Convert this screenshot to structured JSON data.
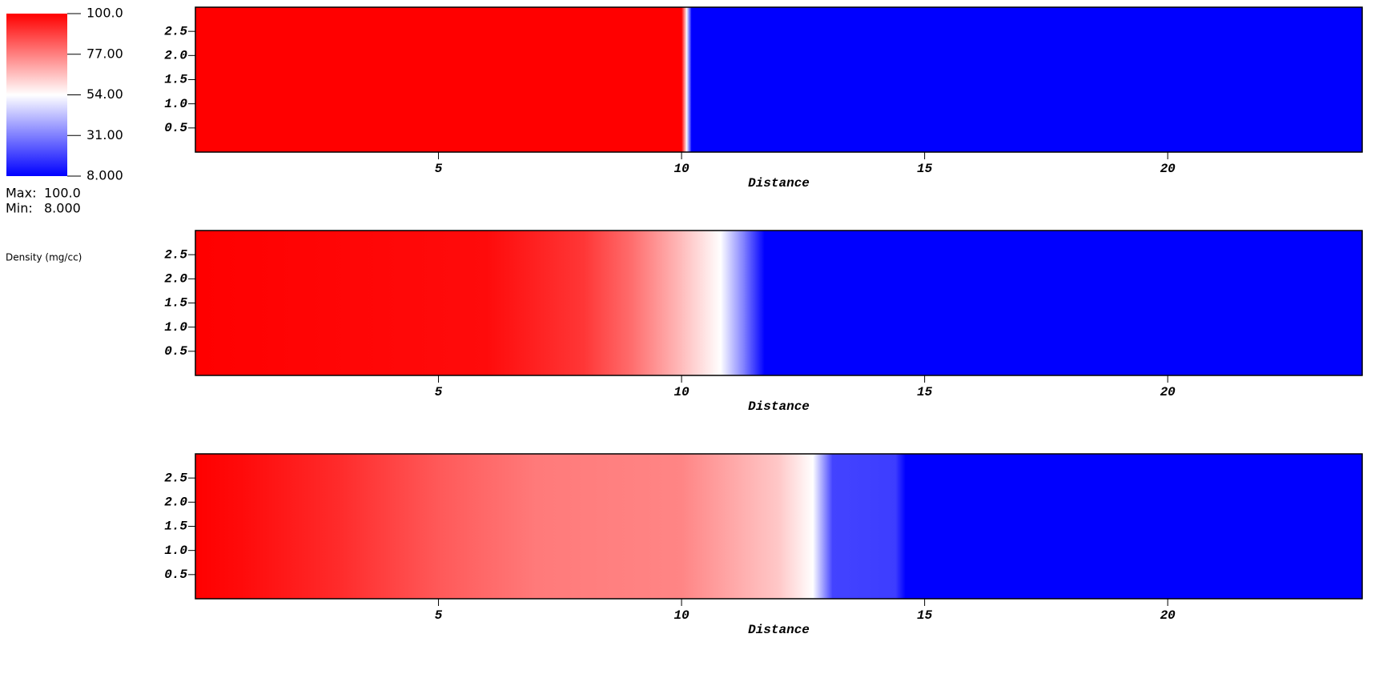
{
  "colorbar": {
    "ticks": [
      {
        "value": 100,
        "label": "100.0"
      },
      {
        "value": 77,
        "label": "77.00"
      },
      {
        "value": 54,
        "label": "54.00"
      },
      {
        "value": 31,
        "label": "31.00"
      },
      {
        "value": 8,
        "label": "8.000"
      }
    ],
    "colors": [
      "#0000ff",
      "#ffffff",
      "#ff0000"
    ],
    "max_label": "Max:",
    "max": {
      "value": 100,
      "label": "100.0"
    },
    "min_label": "Min:",
    "min": {
      "value": 8,
      "label": "8.000"
    },
    "title": "Density (mg/cc)"
  },
  "chart_data": [
    {
      "type": "heatmap",
      "x_label": "Distance",
      "xlim": [
        0,
        24
      ],
      "xticks": [
        5,
        10,
        15,
        20
      ],
      "ylim": [
        0,
        3
      ],
      "yticks": [
        0.5,
        {
          "value": 1,
          "label": "1.0"
        },
        1.5,
        {
          "value": 2,
          "label": "2.0"
        },
        2.5
      ],
      "x": [
        0,
        10.0,
        10.1,
        10.2,
        24
      ],
      "values": [
        100,
        100,
        54,
        8,
        8
      ]
    },
    {
      "type": "heatmap",
      "x_label": "Distance",
      "xlim": [
        0,
        24
      ],
      "xticks": [
        5,
        10,
        15,
        20
      ],
      "ylim": [
        0,
        3
      ],
      "yticks": [
        0.5,
        {
          "value": 1,
          "label": "1.0"
        },
        1.5,
        {
          "value": 2,
          "label": "2.0"
        },
        2.5
      ],
      "x": [
        0,
        6,
        8,
        9,
        10,
        10.8,
        11.3,
        11.7,
        24
      ],
      "values": [
        100,
        98,
        90,
        80,
        66,
        54,
        30,
        8,
        8
      ]
    },
    {
      "type": "heatmap",
      "x_label": "Distance",
      "xlim": [
        0,
        24
      ],
      "xticks": [
        5,
        10,
        15,
        20
      ],
      "ylim": [
        0,
        3
      ],
      "yticks": [
        0.5,
        {
          "value": 1,
          "label": "1.0"
        },
        1.5,
        {
          "value": 2,
          "label": "2.0"
        },
        2.5
      ],
      "x": [
        0,
        1,
        3,
        5,
        7,
        10,
        12,
        12.7,
        13.1,
        14.4,
        14.6,
        24
      ],
      "values": [
        100,
        98,
        92,
        84,
        78,
        76,
        64,
        54,
        20,
        19,
        8,
        8
      ]
    }
  ]
}
